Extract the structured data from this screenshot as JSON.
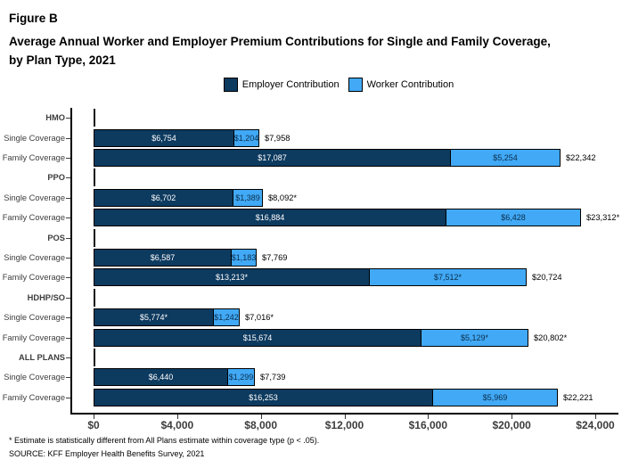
{
  "header": {
    "figure_label": "Figure B",
    "title_line1": "Average Annual Worker and Employer Premium Contributions for Single and Family Coverage,",
    "title_line2": "by Plan Type, 2021"
  },
  "legend": {
    "employer_label": "Employer Contribution",
    "worker_label": "Worker Contribution"
  },
  "colors": {
    "employer": "#0d3a5f",
    "worker": "#41a9f5",
    "worker_text": "#0a2e4d",
    "axis": "#000000"
  },
  "chart_data": {
    "type": "bar",
    "orientation": "horizontal-stacked",
    "title": "Average Annual Worker and Employer Premium Contributions for Single and Family Coverage, by Plan Type, 2021",
    "legend_position": "top-center",
    "series_names": [
      "Employer Contribution",
      "Worker Contribution"
    ],
    "xlabel": "",
    "ylabel": "",
    "xlim": [
      0,
      24000
    ],
    "grid": false,
    "x_ticks": [
      "$0",
      "$4,000",
      "$8,000",
      "$12,000",
      "$16,000",
      "$20,000",
      "$24,000"
    ],
    "x_tick_values": [
      0,
      4000,
      8000,
      12000,
      16000,
      20000,
      24000
    ],
    "groups": [
      {
        "plan": "HMO",
        "rows": [
          {
            "category": "Single Coverage",
            "employer": 6754,
            "worker": 1204,
            "total": 7958,
            "employer_label": "$6,754",
            "worker_label": "$1,204",
            "total_label": "$7,958"
          },
          {
            "category": "Family Coverage",
            "employer": 17087,
            "worker": 5254,
            "total": 22342,
            "employer_label": "$17,087",
            "worker_label": "$5,254",
            "total_label": "$22,342"
          }
        ]
      },
      {
        "plan": "PPO",
        "rows": [
          {
            "category": "Single Coverage",
            "employer": 6702,
            "worker": 1389,
            "total": 8092,
            "employer_label": "$6,702",
            "worker_label": "$1,389",
            "total_label": "$8,092*"
          },
          {
            "category": "Family Coverage",
            "employer": 16884,
            "worker": 6428,
            "total": 23312,
            "employer_label": "$16,884",
            "worker_label": "$6,428",
            "total_label": "$23,312*"
          }
        ]
      },
      {
        "plan": "POS",
        "rows": [
          {
            "category": "Single Coverage",
            "employer": 6587,
            "worker": 1183,
            "total": 7769,
            "employer_label": "$6,587",
            "worker_label": "$1,183",
            "total_label": "$7,769"
          },
          {
            "category": "Family Coverage",
            "employer": 13213,
            "worker": 7512,
            "total": 20724,
            "employer_label": "$13,213*",
            "worker_label": "$7,512*",
            "total_label": "$20,724"
          }
        ]
      },
      {
        "plan": "HDHP/SO",
        "rows": [
          {
            "category": "Single Coverage",
            "employer": 5774,
            "worker": 1242,
            "total": 7016,
            "employer_label": "$5,774*",
            "worker_label": "$1,242",
            "total_label": "$7,016*"
          },
          {
            "category": "Family Coverage",
            "employer": 15674,
            "worker": 5129,
            "total": 20802,
            "employer_label": "$15,674",
            "worker_label": "$5,129*",
            "total_label": "$20,802*"
          }
        ]
      },
      {
        "plan": "ALL PLANS",
        "rows": [
          {
            "category": "Single Coverage",
            "employer": 6440,
            "worker": 1299,
            "total": 7739,
            "employer_label": "$6,440",
            "worker_label": "$1,299",
            "total_label": "$7,739"
          },
          {
            "category": "Family Coverage",
            "employer": 16253,
            "worker": 5969,
            "total": 22221,
            "employer_label": "$16,253",
            "worker_label": "$5,969",
            "total_label": "$22,221"
          }
        ]
      }
    ]
  },
  "footnotes": {
    "note": "* Estimate is statistically different from All Plans estimate within coverage type (p < .05).",
    "source": "SOURCE: KFF Employer Health Benefits Survey, 2021"
  }
}
